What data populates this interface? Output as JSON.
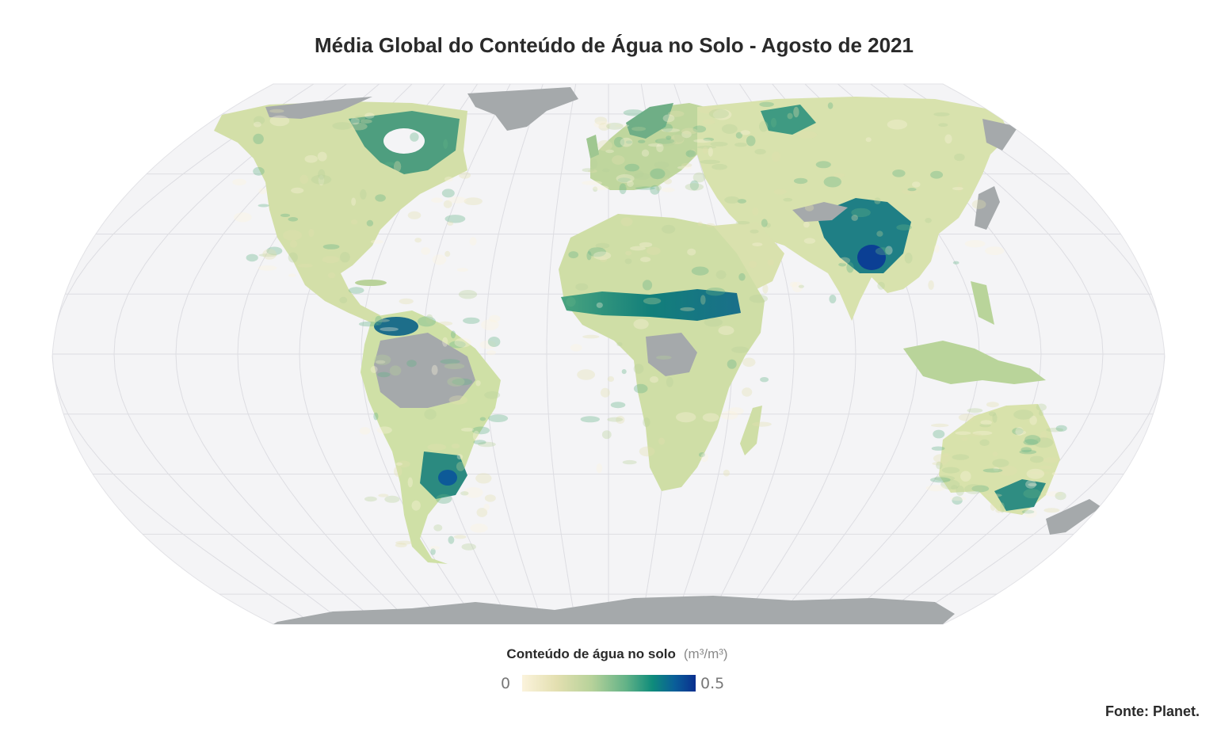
{
  "title": "Média Global do Conteúdo de Água no Solo - Agosto de 2021",
  "legend": {
    "title": "Conteúdo de água no solo",
    "unit": "(m³/m³)",
    "min": "0",
    "max": "0.5",
    "colors": [
      "#fbf3dc",
      "#e3dfb0",
      "#b7d29a",
      "#62b287",
      "#0f8c7b",
      "#0a5e99",
      "#0a2f8f"
    ]
  },
  "source": "Fonte: Planet.",
  "map": {
    "projection": "robinson",
    "ocean_color": "#f4f4f6",
    "graticule_color": "#dddde2",
    "no_data_color": "#a5a9ab",
    "land_base_color": "#cfdcaa"
  }
}
